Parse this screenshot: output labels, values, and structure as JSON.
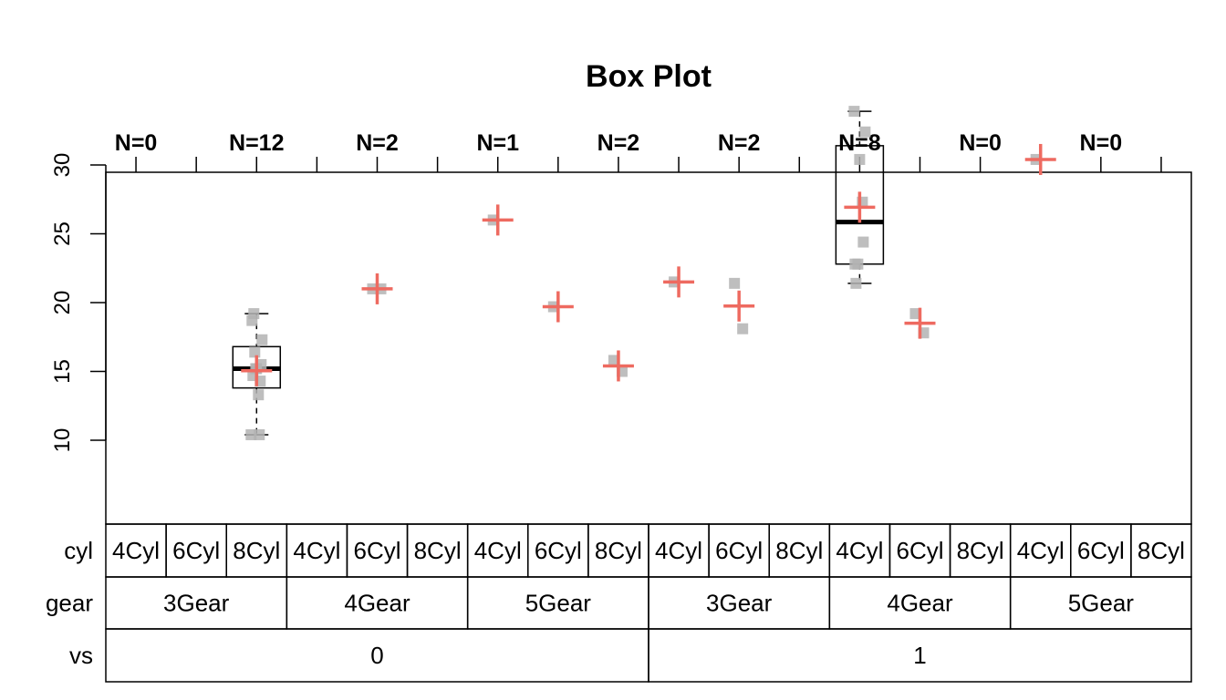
{
  "chart_data": {
    "type": "box",
    "title": "Box Plot",
    "ylim": [
      9.6,
      35.0
    ],
    "y_ticks": [
      10,
      15,
      20,
      25,
      30
    ],
    "colors": {
      "mean_marker": "#EE6A60",
      "points": "#B3B3B3",
      "box": "#000000"
    },
    "factor_rows": [
      {
        "label": "cyl",
        "levels": [
          "4Cyl",
          "6Cyl",
          "8Cyl",
          "4Cyl",
          "6Cyl",
          "8Cyl",
          "4Cyl",
          "6Cyl",
          "8Cyl",
          "4Cyl",
          "6Cyl",
          "8Cyl",
          "4Cyl",
          "6Cyl",
          "8Cyl",
          "4Cyl",
          "6Cyl",
          "8Cyl"
        ]
      },
      {
        "label": "gear",
        "levels": [
          "3Gear",
          "4Gear",
          "5Gear",
          "3Gear",
          "4Gear",
          "5Gear"
        ]
      },
      {
        "label": "vs",
        "levels": [
          "0",
          "1"
        ]
      }
    ],
    "n_labels": [
      "N=0",
      "N=12",
      "N=2",
      "N=1",
      "N=2",
      "N=2",
      "N=8",
      "N=0",
      "N=0"
    ],
    "groups": [
      {
        "cyl": "4Cyl",
        "gear": "3Gear",
        "vs": "0",
        "points": []
      },
      {
        "cyl": "6Cyl",
        "gear": "3Gear",
        "vs": "0",
        "points": []
      },
      {
        "cyl": "8Cyl",
        "gear": "3Gear",
        "vs": "0",
        "points": [
          18.7,
          14.3,
          16.4,
          17.3,
          15.2,
          10.4,
          10.4,
          14.7,
          15.5,
          15.2,
          13.3,
          19.2
        ],
        "box": {
          "min": 10.4,
          "q1": 13.8,
          "median": 15.2,
          "q3": 16.8,
          "max": 19.2
        },
        "mean": 15.05
      },
      {
        "cyl": "4Cyl",
        "gear": "4Gear",
        "vs": "0",
        "points": []
      },
      {
        "cyl": "6Cyl",
        "gear": "4Gear",
        "vs": "0",
        "points": [
          21.0,
          21.0
        ],
        "mean": 21.0
      },
      {
        "cyl": "8Cyl",
        "gear": "4Gear",
        "vs": "0",
        "points": []
      },
      {
        "cyl": "4Cyl",
        "gear": "5Gear",
        "vs": "0",
        "points": [
          26.0
        ],
        "mean": 26.0
      },
      {
        "cyl": "6Cyl",
        "gear": "5Gear",
        "vs": "0",
        "points": [
          19.7
        ],
        "mean": 19.7
      },
      {
        "cyl": "8Cyl",
        "gear": "5Gear",
        "vs": "0",
        "points": [
          15.8,
          15.0
        ],
        "mean": 15.4
      },
      {
        "cyl": "4Cyl",
        "gear": "3Gear",
        "vs": "1",
        "points": [
          21.5
        ],
        "mean": 21.5
      },
      {
        "cyl": "6Cyl",
        "gear": "3Gear",
        "vs": "1",
        "points": [
          21.4,
          18.1
        ],
        "mean": 19.75
      },
      {
        "cyl": "8Cyl",
        "gear": "3Gear",
        "vs": "1",
        "points": []
      },
      {
        "cyl": "4Cyl",
        "gear": "4Gear",
        "vs": "1",
        "points": [
          22.8,
          24.4,
          22.8,
          32.4,
          30.4,
          33.9,
          27.3,
          21.4
        ],
        "box": {
          "min": 21.4,
          "q1": 22.8,
          "median": 25.85,
          "q3": 31.4,
          "max": 33.9
        },
        "mean": 26.93
      },
      {
        "cyl": "6Cyl",
        "gear": "4Gear",
        "vs": "1",
        "points": [
          19.2,
          17.8
        ],
        "mean": 18.5
      },
      {
        "cyl": "8Cyl",
        "gear": "4Gear",
        "vs": "1",
        "points": []
      },
      {
        "cyl": "4Cyl",
        "gear": "5Gear",
        "vs": "1",
        "points": [
          30.4
        ],
        "mean": 30.4
      },
      {
        "cyl": "6Cyl",
        "gear": "5Gear",
        "vs": "1",
        "points": []
      },
      {
        "cyl": "8Cyl",
        "gear": "5Gear",
        "vs": "1",
        "points": []
      }
    ]
  }
}
